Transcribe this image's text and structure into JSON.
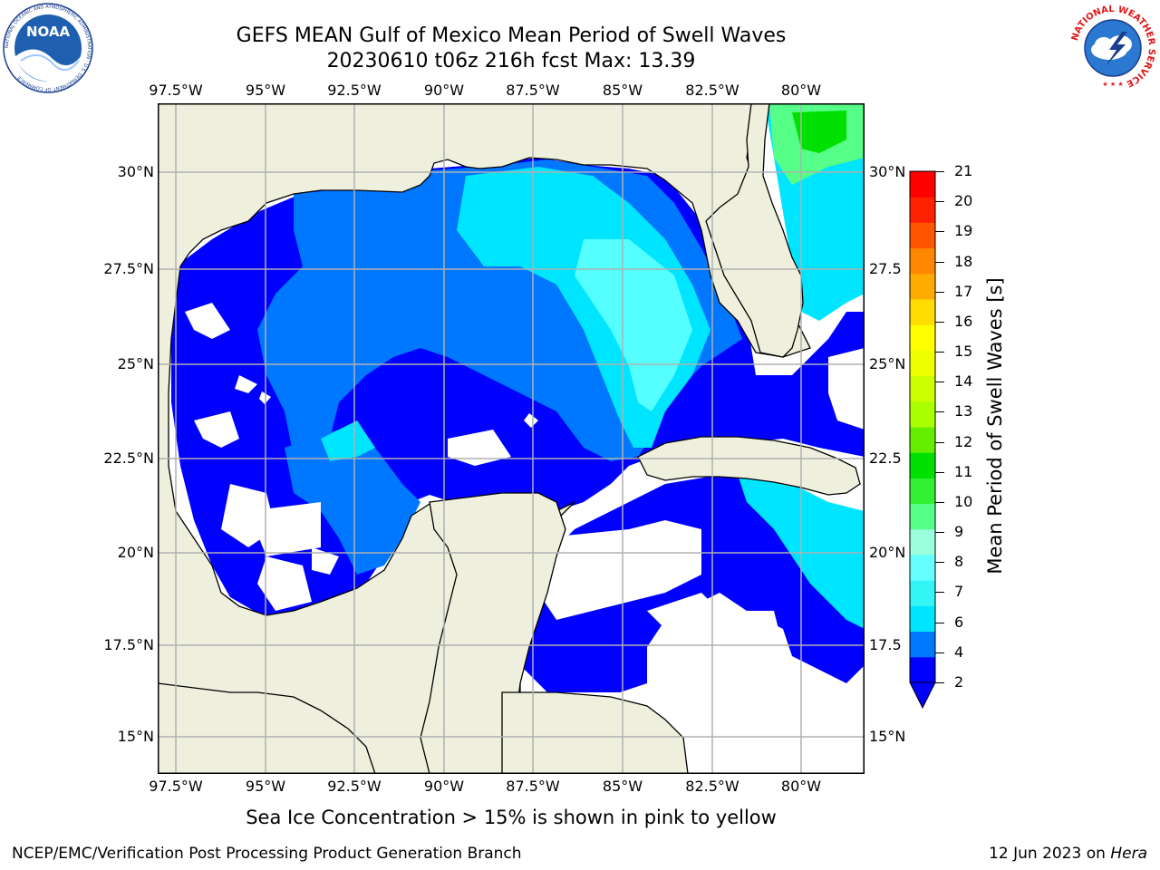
{
  "title": {
    "line1": "GEFS MEAN Gulf of Mexico Mean Period of Swell Waves",
    "line2": "20230610 t06z 216h fcst   Max: 13.39"
  },
  "logos": {
    "left": "noaa-logo",
    "right": "nws-logo",
    "left_text": "NOAA",
    "left_ring_text": "NATIONAL OCEANIC AND ATMOSPHERIC ADMINISTRATION · U.S. DEPARTMENT OF COMMERCE",
    "right_ring_text": "NATIONAL WEATHER SERVICE"
  },
  "map": {
    "lon_labels": [
      "97.5°W",
      "95°W",
      "92.5°W",
      "90°W",
      "87.5°W",
      "85°W",
      "82.5°W",
      "80°W"
    ],
    "lat_labels_left": [
      "30°N",
      "27.5°N",
      "25°N",
      "22.5°N",
      "20°N",
      "17.5°N",
      "15°N"
    ],
    "lat_labels_right": [
      "30°N",
      "27.5",
      "25°N",
      "22.5",
      "20°N",
      "17.5",
      "15°N"
    ],
    "land_color": "#efefde",
    "gridline_color": "#b0b0b0"
  },
  "colorbar": {
    "label": "Mean Period of Swell Waves [s]",
    "ticks": [
      "2",
      "4",
      "6",
      "7",
      "8",
      "9",
      "10",
      "11",
      "12",
      "13",
      "14",
      "15",
      "16",
      "17",
      "18",
      "19",
      "20",
      "21"
    ],
    "colors": [
      "#0000ff",
      "#0077ff",
      "#00e5ff",
      "#33f5f5",
      "#66ffff",
      "#99ffdd",
      "#55ff88",
      "#33f033",
      "#00e000",
      "#66ee00",
      "#aaff00",
      "#ccff00",
      "#eeff00",
      "#ffff00",
      "#ffdd00",
      "#ffaa00",
      "#ff8800",
      "#ff5500",
      "#ff2200",
      "#ff0000"
    ]
  },
  "footnote": "Sea Ice Concentration > 15% is shown in pink to yellow",
  "credit_left": "NCEP/EMC/Verification Post Processing Product Generation Branch",
  "credit_right_date": "12 Jun 2023 on",
  "credit_right_host": "Hera"
}
